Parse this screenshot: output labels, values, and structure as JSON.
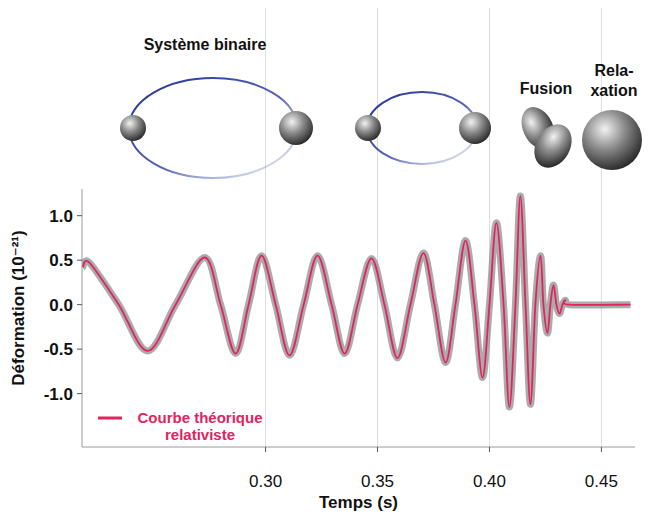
{
  "chart_data": {
    "type": "line",
    "annotations": [
      "Système binaire",
      "Fusion",
      "Rela-\nxation"
    ],
    "xlabel": "Temps (s)",
    "ylabel": "Déformation (10⁻²¹)",
    "x": [
      0.2183,
      0.2214,
      0.2344,
      0.2473,
      0.2598,
      0.2728,
      0.2799,
      0.2866,
      0.2924,
      0.2982,
      0.3045,
      0.3107,
      0.317,
      0.3232,
      0.3295,
      0.3353,
      0.3411,
      0.3473,
      0.3531,
      0.3589,
      0.3647,
      0.3705,
      0.3754,
      0.3804,
      0.3848,
      0.3893,
      0.3933,
      0.3969,
      0.4,
      0.4031,
      0.4063,
      0.4089,
      0.4116,
      0.4138,
      0.4161,
      0.4183,
      0.4205,
      0.4228,
      0.4241,
      0.4259,
      0.4272,
      0.4286,
      0.4299,
      0.4313,
      0.4326,
      0.4339,
      0.4357,
      0.463
    ],
    "series": [
      {
        "name": "Courbe théorique relativiste",
        "color": "#e0245e",
        "values": [
          0.42,
          0.47,
          0,
          -0.52,
          0,
          0.53,
          0,
          -0.55,
          0,
          0.55,
          0,
          -0.57,
          0,
          0.55,
          0,
          -0.55,
          0,
          0.52,
          0,
          -0.6,
          0,
          0.58,
          0,
          -0.65,
          0,
          0.72,
          0,
          -0.82,
          0,
          0.92,
          0,
          -1.15,
          0,
          1.22,
          0,
          -1.12,
          0,
          0.55,
          0,
          -0.32,
          0,
          0.22,
          0,
          -0.1,
          0,
          0.05,
          0,
          0
        ]
      }
    ],
    "xlim": [
      0.218,
      0.465
    ],
    "ylim": [
      -1.6,
      1.3
    ],
    "xticks": [
      {
        "value": 0.3,
        "label": "0.30"
      },
      {
        "value": 0.35,
        "label": "0.35"
      },
      {
        "value": 0.4,
        "label": "0.40"
      },
      {
        "value": 0.45,
        "label": "0.45"
      }
    ],
    "yticks": [
      {
        "value": 1,
        "label": "1.0"
      },
      0.5,
      {
        "value": 0,
        "label": "0.0"
      },
      -0.5,
      {
        "value": -1,
        "label": "-1.0"
      }
    ],
    "grid": "x",
    "legend": "lower left"
  }
}
